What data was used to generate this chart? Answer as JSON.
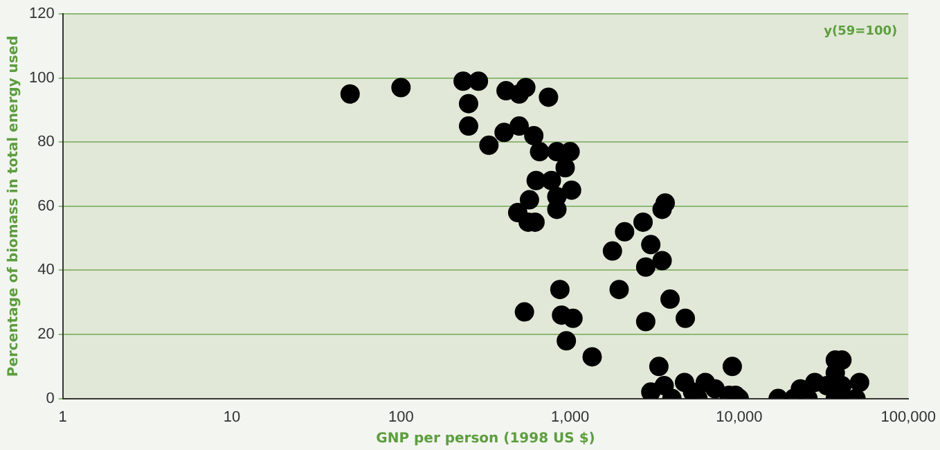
{
  "chart_data": {
    "type": "scatter",
    "xlabel": "GNP per person (1998 US $)",
    "ylabel": "Percentage of biomass in total energy used",
    "annotations": [
      "y(59=100)"
    ],
    "log": "x",
    "xlim": [
      1,
      100000
    ],
    "xticks": [
      1,
      10,
      100,
      {
        "value": 1000,
        "label": "1,000"
      },
      {
        "value": 10000,
        "label": "10,000"
      },
      {
        "value": 100000,
        "label": "100,000"
      }
    ],
    "ylim": [
      0,
      120
    ],
    "yticks": [
      0,
      20,
      40,
      60,
      80,
      100,
      120
    ],
    "grid": "y",
    "legend": false,
    "marker": "circle",
    "series": [
      {
        "color": "#000000",
        "x": [
          50,
          100,
          233,
          287,
          251,
          251,
          331,
          407,
          418,
          500,
          547,
          500,
          745,
          610,
          660,
          835,
          1000,
          935,
          630,
          775,
          1020,
          575,
          835,
          835,
          490,
          565,
          620,
          537,
          870,
          890,
          1040,
          950,
          1350,
          1780,
          2100,
          2700,
          3650,
          3500,
          3000,
          3500,
          2800,
          1950,
          3900,
          2800,
          4800,
          3350,
          9100,
          3000,
          3600,
          4000,
          4750,
          5300,
          5700,
          6300,
          7200,
          8700,
          10000,
          9500,
          17000,
          21000,
          23000,
          25500,
          28000,
          33000,
          37000,
          37000,
          40500,
          40500,
          49000,
          51500,
          37000,
          40500
        ],
        "values": [
          95,
          97,
          99,
          99,
          92,
          85,
          79,
          83,
          96,
          95,
          97,
          85,
          94,
          82,
          77,
          77,
          77,
          72,
          68,
          68,
          65,
          62,
          63,
          59,
          58,
          55,
          55,
          27,
          34,
          26,
          25,
          18,
          13,
          46,
          52,
          55,
          61,
          59,
          48,
          43,
          41,
          34,
          31,
          24,
          25,
          10,
          10,
          2,
          4,
          0,
          5,
          2,
          0,
          5,
          3,
          1,
          0,
          1,
          0,
          0,
          3,
          0,
          5,
          4,
          12,
          8,
          12,
          4,
          0,
          5,
          0,
          0
        ]
      }
    ]
  }
}
